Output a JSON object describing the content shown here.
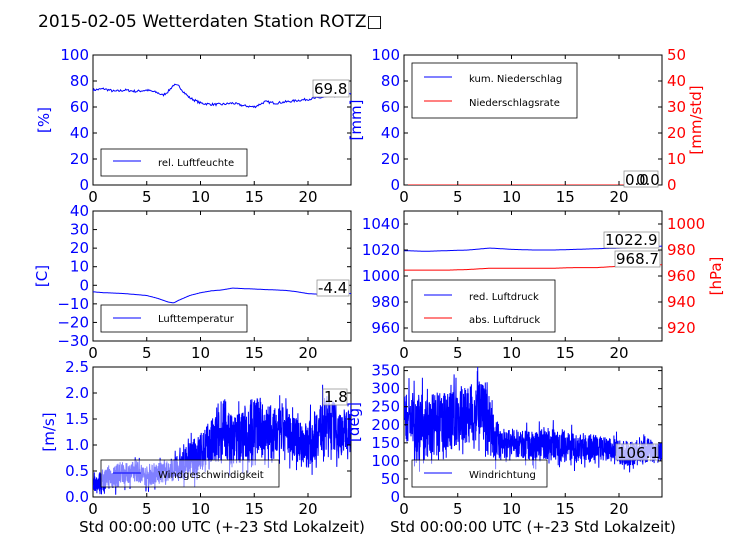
{
  "figure": {
    "title": "2015-02-05 Wetterdaten Station ROTZ□",
    "xlabel": "Std 00:00:00 UTC (+-23 Std Lokalzeit)"
  },
  "colors": {
    "blue": "#0000ff",
    "red": "#ff0000",
    "axis": "#000000"
  },
  "chart_data": [
    {
      "id": "humidity",
      "type": "line",
      "ylabel": "[%]",
      "xlim": [
        0,
        24
      ],
      "ylim": [
        0,
        100
      ],
      "xticks": [
        "0",
        "5",
        "10",
        "15",
        "20"
      ],
      "yticks": [
        "0",
        "20",
        "40",
        "60",
        "80",
        "100"
      ],
      "legend": {
        "placement": "lower-left",
        "entries": [
          "rel. Luftfeuchte"
        ]
      },
      "value_label": "69.8",
      "series": [
        {
          "name": "rel. Luftfeuchte",
          "color": "#0000ff",
          "x": [
            0,
            1,
            2,
            3,
            4,
            5,
            6,
            6.5,
            7,
            7.5,
            8,
            8.5,
            9,
            10,
            11,
            12,
            13,
            14,
            15,
            16,
            17,
            18,
            19,
            20,
            21,
            22,
            23,
            24
          ],
          "y": [
            73,
            74,
            72,
            73,
            72,
            73,
            71,
            69,
            72,
            77,
            76,
            71,
            67,
            63,
            62,
            62,
            63,
            61,
            60,
            64,
            63,
            64,
            65,
            66,
            67,
            68,
            69,
            70
          ]
        }
      ]
    },
    {
      "id": "precip",
      "type": "line",
      "ylabel": "[mm]",
      "ylabel_right": "[mm/std]",
      "xlim": [
        0,
        24
      ],
      "ylim": [
        0,
        100
      ],
      "ylim_right": [
        0,
        50
      ],
      "xticks": [
        "0",
        "5",
        "10",
        "15",
        "20"
      ],
      "yticks": [
        "0",
        "20",
        "40",
        "60",
        "80",
        "100"
      ],
      "yticks_right": [
        "0",
        "10",
        "20",
        "30",
        "40",
        "50"
      ],
      "legend": {
        "placement": "upper-left",
        "entries": [
          "kum. Niederschlag",
          "Niederschlagsrate"
        ]
      },
      "value_label": "0.0",
      "value_label_2": "0.0",
      "series": [
        {
          "name": "kum. Niederschlag",
          "color": "#0000ff",
          "x": [
            0,
            24
          ],
          "y": [
            0,
            0
          ]
        },
        {
          "name": "Niederschlagsrate",
          "color": "#ff0000",
          "axis": "right",
          "x": [
            0,
            24
          ],
          "y": [
            0,
            0
          ]
        }
      ]
    },
    {
      "id": "temperature",
      "type": "line",
      "ylabel": "[C]",
      "xlim": [
        0,
        24
      ],
      "ylim": [
        -30,
        40
      ],
      "xticks": [
        "0",
        "5",
        "10",
        "15",
        "20"
      ],
      "yticks": [
        "−30",
        "−20",
        "−10",
        "0",
        "10",
        "20",
        "30",
        "40"
      ],
      "legend": {
        "placement": "lower-left",
        "entries": [
          "Lufttemperatur"
        ]
      },
      "value_label": "-4.4",
      "series": [
        {
          "name": "Lufttemperatur",
          "color": "#0000ff",
          "x": [
            0,
            1,
            2,
            3,
            4,
            5,
            6,
            7,
            7.5,
            8,
            9,
            10,
            11,
            12,
            13,
            14,
            15,
            16,
            17,
            18,
            19,
            20,
            21,
            22,
            23,
            24
          ],
          "y": [
            -3.5,
            -4,
            -4.2,
            -4.5,
            -5,
            -5.5,
            -7,
            -9,
            -9.5,
            -8,
            -5.5,
            -4,
            -3,
            -2.5,
            -1.5,
            -1.8,
            -2,
            -2.3,
            -2.5,
            -2.8,
            -3.5,
            -4.5,
            -4.8,
            -4.6,
            -4.4,
            -4.4
          ]
        }
      ]
    },
    {
      "id": "pressure",
      "type": "line",
      "xlim": [
        0,
        24
      ],
      "ylim": [
        950,
        1050
      ],
      "ylim_right": [
        910,
        1010
      ],
      "ylabel_right": "[hPa]",
      "xticks": [
        "0",
        "5",
        "10",
        "15",
        "20"
      ],
      "yticks": [
        "960",
        "980",
        "1000",
        "1020",
        "1040"
      ],
      "yticks_right": [
        "920",
        "940",
        "960",
        "980",
        "1000"
      ],
      "legend": {
        "placement": "lower-left",
        "entries": [
          "red. Luftdruck",
          "abs. Luftdruck"
        ]
      },
      "value_label": "1022.9",
      "value_label_2": "968.7",
      "series": [
        {
          "name": "red. Luftdruck",
          "color": "#0000ff",
          "x": [
            0,
            2,
            4,
            6,
            8,
            10,
            12,
            14,
            16,
            18,
            20,
            22,
            24
          ],
          "y": [
            1019.5,
            1019,
            1019.5,
            1020,
            1021.5,
            1020.5,
            1020,
            1020,
            1020.5,
            1021,
            1021.5,
            1022.5,
            1023
          ]
        },
        {
          "name": "abs. Luftdruck",
          "color": "#ff0000",
          "axis": "right",
          "x": [
            0,
            2,
            4,
            6,
            8,
            10,
            12,
            14,
            16,
            18,
            20,
            22,
            24
          ],
          "y": [
            964.5,
            964.5,
            964.5,
            965,
            966,
            966,
            966,
            966,
            966.5,
            966.5,
            967.5,
            968,
            968.7
          ]
        }
      ]
    },
    {
      "id": "windspeed",
      "type": "line",
      "ylabel": "[m/s]",
      "xlim": [
        0,
        24
      ],
      "ylim": [
        0,
        2.5
      ],
      "xticks": [
        "0",
        "5",
        "10",
        "15",
        "20"
      ],
      "yticks": [
        "0.0",
        "0.5",
        "1.0",
        "1.5",
        "2.0",
        "2.5"
      ],
      "legend": {
        "placement": "lower-left",
        "entries": [
          "Windgeschwindigkeit"
        ]
      },
      "value_label": "1.8",
      "series": [
        {
          "name": "Windgeschwindigkeit",
          "color": "#0000ff",
          "x": [
            0,
            1,
            2,
            3,
            4,
            5,
            6,
            7,
            8,
            9,
            10,
            11,
            12,
            13,
            14,
            15,
            16,
            17,
            18,
            19,
            20,
            21,
            22,
            23,
            24
          ],
          "y": [
            0.25,
            0.35,
            0.4,
            0.45,
            0.5,
            0.4,
            0.45,
            0.5,
            0.55,
            0.7,
            0.85,
            1.0,
            1.2,
            1.1,
            1.2,
            1.4,
            1.3,
            1.2,
            1.3,
            1.1,
            1.0,
            1.3,
            1.5,
            1.2,
            1.4
          ],
          "spread": [
            0.15,
            0.2,
            0.25,
            0.2,
            0.2,
            0.2,
            0.2,
            0.2,
            0.25,
            0.35,
            0.4,
            0.5,
            0.55,
            0.5,
            0.55,
            0.6,
            0.55,
            0.5,
            0.45,
            0.4,
            0.45,
            0.5,
            0.5,
            0.45,
            0.4
          ]
        }
      ]
    },
    {
      "id": "winddir",
      "type": "line",
      "ylabel": "[deg]",
      "xlim": [
        0,
        24
      ],
      "ylim": [
        0,
        360
      ],
      "xticks": [
        "0",
        "5",
        "10",
        "15",
        "20"
      ],
      "yticks": [
        "0",
        "50",
        "100",
        "150",
        "200",
        "250",
        "300",
        "350"
      ],
      "legend": {
        "placement": "lower-left",
        "entries": [
          "Windrichtung"
        ]
      },
      "value_label": "106.1",
      "series": [
        {
          "name": "Windrichtung",
          "color": "#0000ff",
          "x": [
            0,
            1,
            2,
            3,
            4,
            5,
            6,
            7,
            8,
            9,
            10,
            11,
            12,
            13,
            14,
            15,
            16,
            17,
            18,
            19,
            20,
            21,
            22,
            23,
            24
          ],
          "y": [
            230,
            210,
            190,
            200,
            210,
            220,
            230,
            240,
            200,
            140,
            150,
            145,
            140,
            150,
            145,
            140,
            135,
            140,
            135,
            130,
            125,
            120,
            125,
            130,
            125
          ],
          "spread": [
            70,
            80,
            90,
            90,
            80,
            80,
            80,
            80,
            90,
            40,
            40,
            40,
            40,
            45,
            45,
            40,
            40,
            40,
            35,
            35,
            35,
            35,
            30,
            35,
            30
          ]
        }
      ]
    }
  ]
}
